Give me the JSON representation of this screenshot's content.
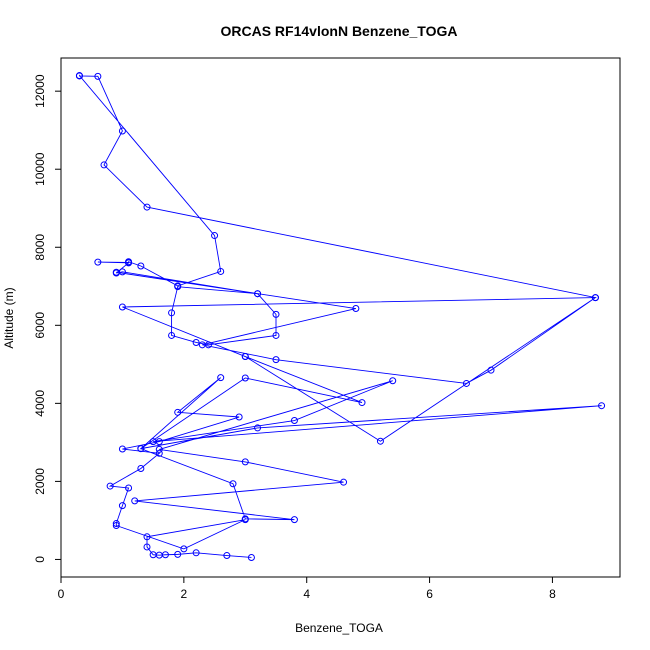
{
  "chart_data": {
    "type": "line",
    "title": "ORCAS RF14vlonN Benzene_TOGA",
    "xlabel": "Benzene_TOGA",
    "ylabel": "Altitude (m)",
    "xlim": [
      0,
      9.1
    ],
    "ylim": [
      -450,
      12850
    ],
    "x_ticks": [
      0,
      2,
      4,
      6,
      8
    ],
    "y_ticks": [
      0,
      2000,
      4000,
      6000,
      8000,
      10000,
      12000
    ],
    "series": [
      {
        "color": "#0000ff",
        "points": [
          [
            3.1,
            50
          ],
          [
            2.7,
            100
          ],
          [
            2.2,
            170
          ],
          [
            1.9,
            130
          ],
          [
            1.7,
            120
          ],
          [
            1.6,
            110
          ],
          [
            1.5,
            120
          ],
          [
            1.4,
            320
          ],
          [
            1.4,
            580
          ],
          [
            3.0,
            1020
          ],
          [
            2.0,
            270
          ],
          [
            0.9,
            870
          ],
          [
            0.9,
            920
          ],
          [
            1.0,
            1380
          ],
          [
            1.1,
            1830
          ],
          [
            0.8,
            1880
          ],
          [
            1.3,
            2330
          ],
          [
            1.6,
            2720
          ],
          [
            1.0,
            2830
          ],
          [
            1.6,
            3020
          ],
          [
            2.9,
            3650
          ],
          [
            1.9,
            3770
          ],
          [
            2.6,
            4660
          ],
          [
            1.3,
            2840
          ],
          [
            3.2,
            3370
          ],
          [
            8.8,
            3940
          ],
          [
            1.5,
            3020
          ],
          [
            3.8,
            3560
          ],
          [
            5.4,
            4580
          ],
          [
            1.6,
            2820
          ],
          [
            3.0,
            2500
          ],
          [
            4.6,
            1980
          ],
          [
            1.2,
            1500
          ],
          [
            3.8,
            1020
          ],
          [
            3.0,
            1040
          ],
          [
            2.8,
            1940
          ],
          [
            1.3,
            2840
          ],
          [
            3.0,
            4650
          ],
          [
            4.9,
            4020
          ],
          [
            3.0,
            5200
          ],
          [
            5.2,
            3030
          ],
          [
            8.7,
            6710
          ],
          [
            1.4,
            9030
          ],
          [
            0.7,
            10110
          ],
          [
            1.0,
            10980
          ],
          [
            0.6,
            12380
          ],
          [
            0.3,
            12390
          ],
          [
            0.3,
            12400
          ],
          [
            2.5,
            8300
          ],
          [
            2.6,
            7380
          ],
          [
            1.9,
            7010
          ],
          [
            1.3,
            7520
          ],
          [
            1.1,
            7630
          ],
          [
            1.1,
            7610
          ],
          [
            0.6,
            7620
          ],
          [
            1.1,
            7600
          ],
          [
            0.9,
            7340
          ],
          [
            1.0,
            7370
          ],
          [
            3.2,
            6810
          ],
          [
            3.5,
            6280
          ],
          [
            3.5,
            5740
          ],
          [
            2.4,
            5500
          ],
          [
            2.2,
            5560
          ],
          [
            1.8,
            5740
          ],
          [
            1.8,
            6320
          ],
          [
            1.9,
            6990
          ],
          [
            3.2,
            6810
          ],
          [
            0.9,
            7360
          ],
          [
            4.8,
            6430
          ],
          [
            2.3,
            5500
          ],
          [
            3.5,
            5120
          ],
          [
            6.6,
            4510
          ],
          [
            7.0,
            4850
          ],
          [
            8.7,
            6710
          ],
          [
            1.0,
            6470
          ],
          [
            3.0,
            5200
          ]
        ]
      }
    ]
  }
}
